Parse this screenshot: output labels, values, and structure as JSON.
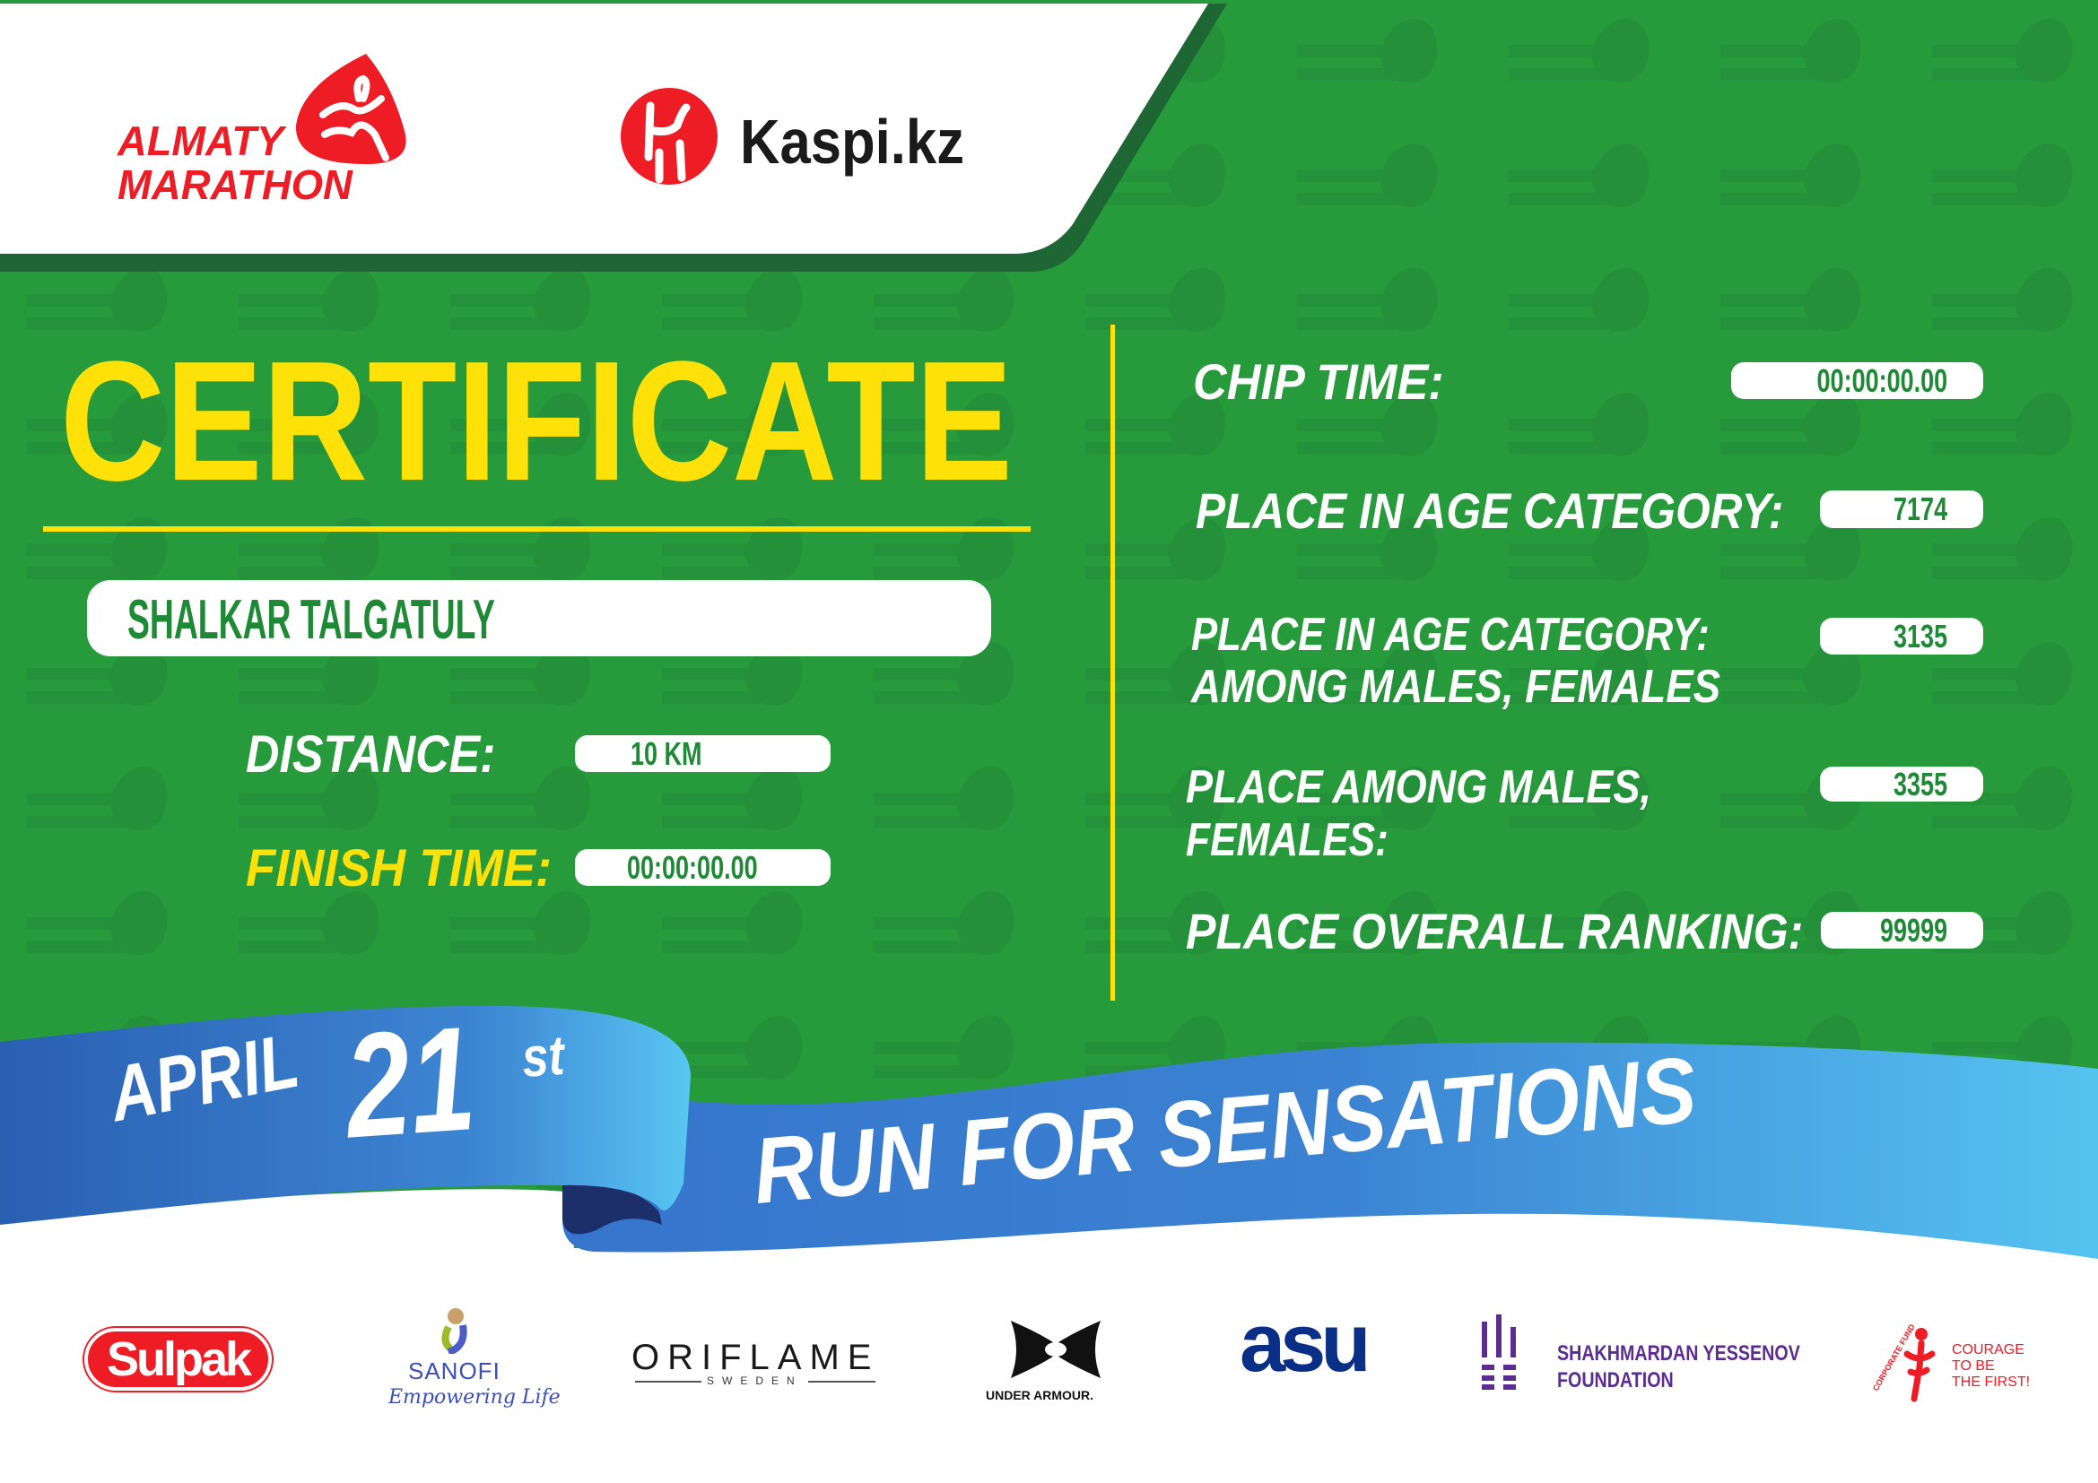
{
  "header": {
    "event_logo_line1": "ALMATY",
    "event_logo_line2": "MARATHON",
    "sponsor_logo": "Kaspi.kz"
  },
  "certificate": {
    "title": "CERTIFICATE",
    "participant_name": "SHALKAR TALGATULY",
    "distance_label": "DISTANCE:",
    "distance_value": "10 KM",
    "finish_time_label": "FINISH TIME:",
    "finish_time_value": "00:00:00.00"
  },
  "results": {
    "chip_time_label": "CHIP TIME:",
    "chip_time_value": "00:00:00.00",
    "age_category_label": "PLACE IN AGE CATEGORY:",
    "age_category_value": "7174",
    "age_gender_label_line1": "PLACE IN AGE CATEGORY:",
    "age_gender_label_line2": "AMONG MALES, FEMALES",
    "age_gender_value": "3135",
    "gender_label_line1": "PLACE AMONG MALES,",
    "gender_label_line2": "FEMALES:",
    "gender_value": "3355",
    "overall_label": "PLACE OVERALL RANKING:",
    "overall_value": "99999"
  },
  "banner": {
    "month": "APRIL",
    "day": "21",
    "day_suffix": "st",
    "slogan": "RUN FOR SENSATIONS"
  },
  "partners": {
    "sulpak": "Sulpak",
    "sanofi": "SANOFI",
    "sanofi_tagline": "Empowering Life",
    "oriflame": "ORIFLAME",
    "oriflame_sub": "SWEDEN",
    "under_armour": "UNDER ARMOUR.",
    "asu": "asu",
    "foundation_line1": "SHAKHMARDAN YESSENOV",
    "foundation_line2": "FOUNDATION",
    "courage_fund_arc": "CORPORATE FUND",
    "courage_line1": "COURAGE",
    "courage_line2": "TO BE",
    "courage_line3": "THE FIRST!"
  },
  "watermark": "ALMATY MARATHON",
  "colors": {
    "background_green": "#279a3b",
    "dark_green": "#1e6634",
    "accent_yellow": "#ffe10a",
    "text_green": "#1f8a36",
    "ribbon_blue": "#3a7fd0",
    "ribbon_light_blue": "#55c3f0",
    "brand_red": "#ee1c25"
  }
}
